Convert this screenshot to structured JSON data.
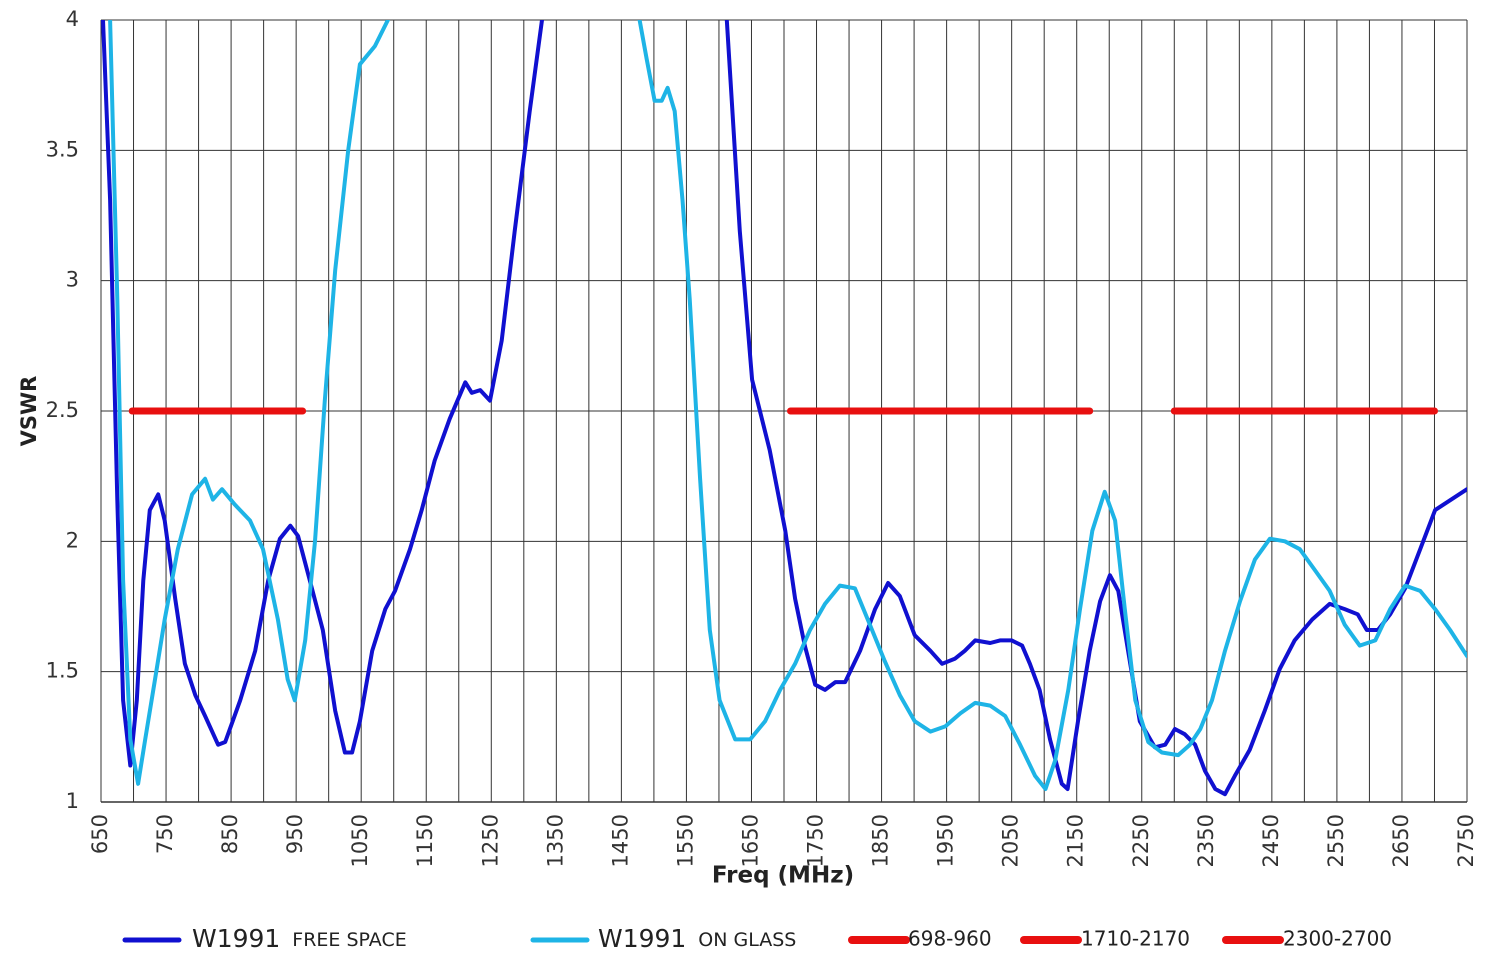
{
  "chart_data": {
    "type": "line",
    "xlabel": "Freq (MHz)",
    "ylabel": "VSWR",
    "xlim": [
      650,
      2750
    ],
    "ylim": [
      1,
      4
    ],
    "xticks": [
      650,
      750,
      850,
      950,
      1050,
      1150,
      1250,
      1350,
      1450,
      1550,
      1650,
      1750,
      1850,
      1950,
      2050,
      2150,
      2250,
      2350,
      2450,
      2550,
      2650,
      2750
    ],
    "x_minor_grid": [
      700,
      800,
      900,
      1000,
      1100,
      1200,
      1300,
      1400,
      1500,
      1600,
      1700,
      1800,
      1900,
      2000,
      2100,
      2200,
      2300,
      2400,
      2500,
      2600,
      2700
    ],
    "yticks": [
      1,
      1.5,
      2,
      2.5,
      3,
      3.5,
      4
    ],
    "grid": true,
    "series": [
      {
        "name": "W1991 FREE SPACE",
        "color": "#1010d0",
        "width": 4,
        "x": [
          653,
          664,
          675,
          684,
          695,
          705,
          715,
          725,
          738,
          748,
          764,
          779,
          795,
          810,
          830,
          841,
          864,
          887,
          907,
          925,
          941,
          953,
          971,
          991,
          1010,
          1025,
          1036,
          1048,
          1067,
          1087,
          1102,
          1125,
          1143,
          1163,
          1186,
          1210,
          1220,
          1233,
          1248,
          1266,
          1286,
          1309,
          1328,
          1470,
          1612,
          1632,
          1651,
          1678,
          1702,
          1717,
          1732,
          1748,
          1763,
          1779,
          1794,
          1817,
          1840,
          1860,
          1878,
          1901,
          1925,
          1943,
          1963,
          1978,
          1994,
          2017,
          2032,
          2050,
          2066,
          2078,
          2093,
          2109,
          2127,
          2136,
          2152,
          2170,
          2186,
          2201,
          2214,
          2229,
          2247,
          2270,
          2286,
          2301,
          2316,
          2332,
          2347,
          2363,
          2378,
          2393,
          2416,
          2439,
          2462,
          2485,
          2512,
          2539,
          2562,
          2582,
          2596,
          2613,
          2632,
          2655,
          2678,
          2701,
          2750
        ],
        "values": [
          4.0,
          3.31,
          2.16,
          1.39,
          1.14,
          1.39,
          1.85,
          2.12,
          2.18,
          2.08,
          1.78,
          1.53,
          1.41,
          1.33,
          1.22,
          1.23,
          1.39,
          1.58,
          1.85,
          2.01,
          2.06,
          2.02,
          1.85,
          1.66,
          1.35,
          1.19,
          1.19,
          1.31,
          1.58,
          1.74,
          1.81,
          1.97,
          2.12,
          2.31,
          2.47,
          2.61,
          2.57,
          2.58,
          2.54,
          2.77,
          3.19,
          3.65,
          4.0,
          null,
          4.0,
          3.19,
          2.62,
          2.35,
          2.04,
          1.78,
          1.6,
          1.45,
          1.43,
          1.46,
          1.46,
          1.58,
          1.74,
          1.84,
          1.79,
          1.64,
          1.58,
          1.53,
          1.55,
          1.58,
          1.62,
          1.61,
          1.62,
          1.62,
          1.6,
          1.53,
          1.43,
          1.24,
          1.07,
          1.05,
          1.31,
          1.58,
          1.77,
          1.87,
          1.81,
          1.58,
          1.31,
          1.21,
          1.22,
          1.28,
          1.26,
          1.22,
          1.12,
          1.05,
          1.03,
          1.1,
          1.2,
          1.35,
          1.51,
          1.62,
          1.7,
          1.76,
          1.74,
          1.72,
          1.66,
          1.66,
          1.72,
          1.82,
          1.97,
          2.12,
          2.2
        ]
      },
      {
        "name": "W1991 ON GLASS",
        "color": "#1eb4e6",
        "width": 4,
        "x": [
          664,
          675,
          684,
          695,
          707,
          718,
          733,
          748,
          768,
          790,
          810,
          822,
          836,
          856,
          879,
          899,
          922,
          937,
          948,
          964,
          979,
          994,
          1010,
          1030,
          1048,
          1071,
          1091,
          1300,
          1478,
          1489,
          1501,
          1512,
          1521,
          1532,
          1544,
          1555,
          1571,
          1586,
          1601,
          1625,
          1648,
          1671,
          1694,
          1717,
          1740,
          1763,
          1786,
          1809,
          1832,
          1855,
          1878,
          1901,
          1925,
          1948,
          1971,
          1994,
          2017,
          2040,
          2063,
          2086,
          2102,
          2117,
          2137,
          2155,
          2174,
          2193,
          2209,
          2224,
          2240,
          2260,
          2281,
          2306,
          2324,
          2340,
          2358,
          2378,
          2401,
          2424,
          2447,
          2470,
          2493,
          2516,
          2539,
          2562,
          2585,
          2609,
          2632,
          2655,
          2678,
          2701,
          2724,
          2750
        ],
        "values": [
          4.0,
          2.93,
          1.85,
          1.24,
          1.07,
          1.24,
          1.47,
          1.7,
          1.97,
          2.18,
          2.24,
          2.16,
          2.2,
          2.14,
          2.08,
          1.97,
          1.7,
          1.47,
          1.39,
          1.62,
          2.0,
          2.54,
          3.04,
          3.5,
          3.83,
          3.9,
          4.0,
          null,
          4.0,
          3.85,
          3.69,
          3.69,
          3.74,
          3.65,
          3.31,
          2.93,
          2.24,
          1.66,
          1.39,
          1.24,
          1.24,
          1.31,
          1.43,
          1.53,
          1.66,
          1.76,
          1.83,
          1.82,
          1.68,
          1.54,
          1.41,
          1.31,
          1.27,
          1.29,
          1.34,
          1.38,
          1.37,
          1.33,
          1.22,
          1.1,
          1.05,
          1.16,
          1.43,
          1.74,
          2.04,
          2.19,
          2.08,
          1.74,
          1.39,
          1.23,
          1.19,
          1.18,
          1.22,
          1.28,
          1.39,
          1.58,
          1.77,
          1.93,
          2.01,
          2.0,
          1.97,
          1.89,
          1.81,
          1.68,
          1.6,
          1.62,
          1.74,
          1.83,
          1.81,
          1.74,
          1.66,
          1.56
        ]
      },
      {
        "name": "698-960",
        "color": "#e81010",
        "width": 7,
        "x": [
          698,
          960
        ],
        "values": [
          2.5,
          2.5
        ]
      },
      {
        "name": "1710-2170",
        "color": "#e81010",
        "width": 7,
        "x": [
          1710,
          2170
        ],
        "values": [
          2.5,
          2.5
        ]
      },
      {
        "name": "2300-2700",
        "color": "#e81010",
        "width": 7,
        "x": [
          2300,
          2700
        ],
        "values": [
          2.5,
          2.5
        ]
      }
    ]
  }
}
